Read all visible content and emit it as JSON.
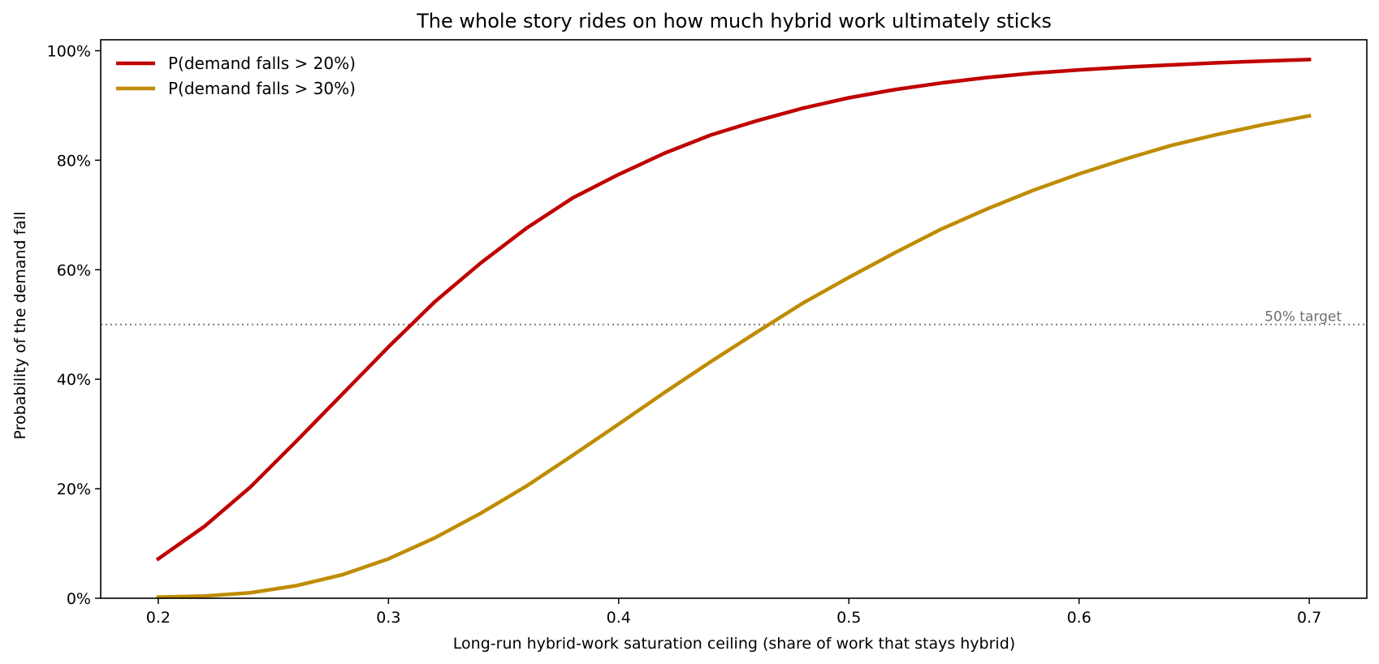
{
  "chart_data": {
    "type": "line",
    "title": "The whole story rides on how much hybrid work ultimately sticks",
    "xlabel": "Long-run hybrid-work saturation ceiling  (share of work that stays hybrid)",
    "ylabel": "Probability of the demand fall",
    "xlim": [
      0.175,
      0.725
    ],
    "ylim": [
      0,
      1.02
    ],
    "xticks": [
      0.2,
      0.3,
      0.4,
      0.5,
      0.6,
      0.7
    ],
    "xtick_labels": [
      "0.2",
      "0.3",
      "0.4",
      "0.5",
      "0.6",
      "0.7"
    ],
    "yticks": [
      0,
      0.2,
      0.4,
      0.6,
      0.8,
      1.0
    ],
    "ytick_labels": [
      "0%",
      "20%",
      "40%",
      "60%",
      "80%",
      "100%"
    ],
    "grid": false,
    "legend_position": "top-left",
    "x": [
      0.2,
      0.22,
      0.24,
      0.26,
      0.28,
      0.3,
      0.32,
      0.34,
      0.36,
      0.38,
      0.4,
      0.42,
      0.44,
      0.46,
      0.48,
      0.5,
      0.52,
      0.54,
      0.56,
      0.58,
      0.6,
      0.62,
      0.64,
      0.66,
      0.68,
      0.7
    ],
    "series": [
      {
        "name": "P(demand falls > 20%)",
        "color": "#c00000",
        "values": [
          0.072,
          0.131,
          0.203,
          0.287,
          0.373,
          0.459,
          0.541,
          0.612,
          0.676,
          0.731,
          0.774,
          0.813,
          0.846,
          0.872,
          0.895,
          0.914,
          0.929,
          0.941,
          0.951,
          0.959,
          0.965,
          0.97,
          0.974,
          0.978,
          0.981,
          0.984
        ]
      },
      {
        "name": "P(demand falls > 30%)",
        "color": "#bf8c00",
        "values": [
          0.002,
          0.004,
          0.01,
          0.023,
          0.043,
          0.072,
          0.11,
          0.155,
          0.205,
          0.261,
          0.318,
          0.376,
          0.432,
          0.486,
          0.539,
          0.586,
          0.631,
          0.674,
          0.711,
          0.745,
          0.775,
          0.802,
          0.827,
          0.847,
          0.865,
          0.881
        ]
      }
    ],
    "reference_line": {
      "y": 0.5,
      "label": "50% target",
      "color": "#808080"
    }
  }
}
